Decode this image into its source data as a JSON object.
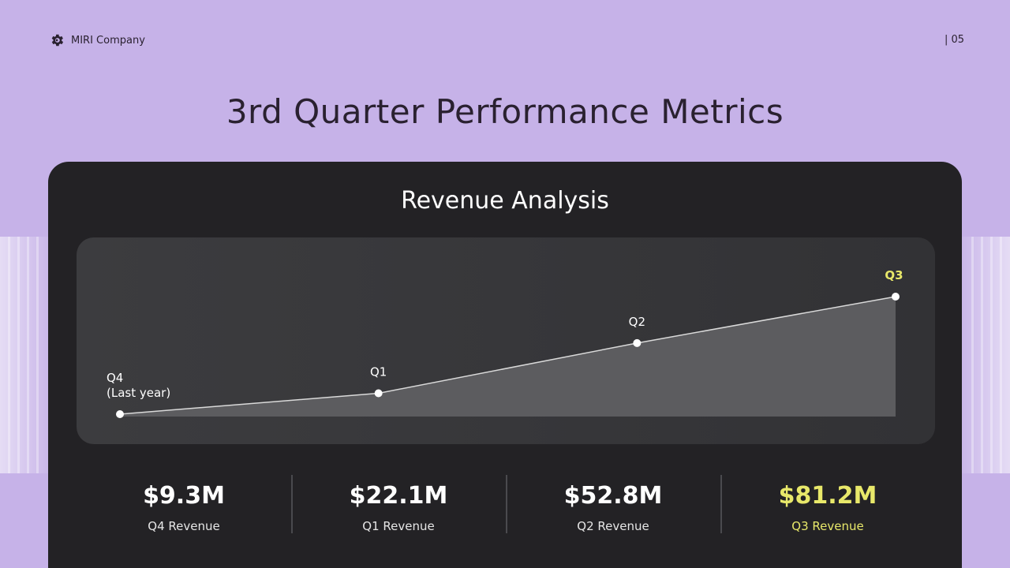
{
  "header": {
    "company": "MIRI Company",
    "page_number": "| 05"
  },
  "title": "3rd Quarter Performance Metrics",
  "card": {
    "title": "Revenue Analysis"
  },
  "colors": {
    "highlight": "#e8e86a",
    "line": "#d9d9d9",
    "area": "#5c5c5f"
  },
  "chart_data": {
    "type": "area",
    "title": "Revenue Analysis",
    "categories": [
      "Q4 (Last year)",
      "Q1",
      "Q2",
      "Q3"
    ],
    "point_labels": [
      [
        "Q4",
        "(Last year)"
      ],
      [
        "Q1"
      ],
      [
        "Q2"
      ],
      [
        "Q3"
      ]
    ],
    "series": [
      {
        "name": "Revenue ($M)",
        "values": [
          9.3,
          22.1,
          52.8,
          81.2
        ]
      }
    ],
    "highlight_index": 3,
    "grid": false
  },
  "stats": [
    {
      "value": "$9.3M",
      "label": "Q4 Revenue"
    },
    {
      "value": "$22.1M",
      "label": "Q1 Revenue"
    },
    {
      "value": "$52.8M",
      "label": "Q2 Revenue"
    },
    {
      "value": "$81.2M",
      "label": "Q3 Revenue",
      "highlight": true
    }
  ]
}
